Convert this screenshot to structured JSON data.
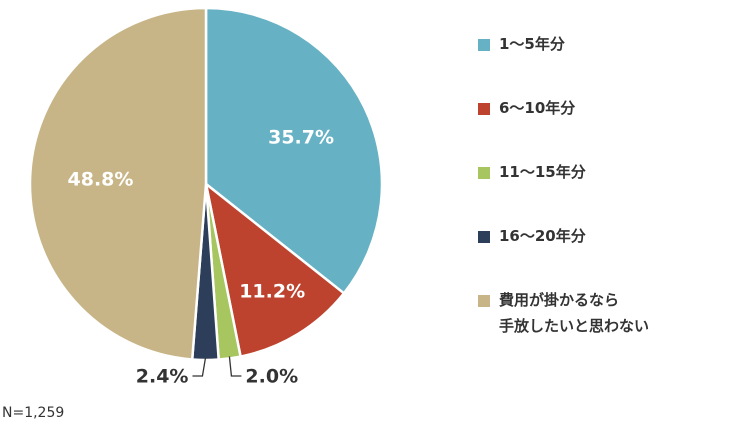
{
  "chart_data": {
    "type": "pie",
    "title": "",
    "categories": [
      "1〜5年分",
      "6〜10年分",
      "11〜15年分",
      "16〜20年分",
      "費用が掛かるなら\n手放したいと思わない"
    ],
    "values": [
      35.7,
      11.2,
      2.0,
      2.4,
      48.8
    ],
    "labels": [
      "35.7%",
      "11.2%",
      "2.0%",
      "2.4%",
      "48.8%"
    ],
    "colors": [
      "#66b2c4",
      "#bd432e",
      "#a7c65f",
      "#2c3e59",
      "#c8b587"
    ],
    "legend_position": "right",
    "note": "N=1,259"
  }
}
